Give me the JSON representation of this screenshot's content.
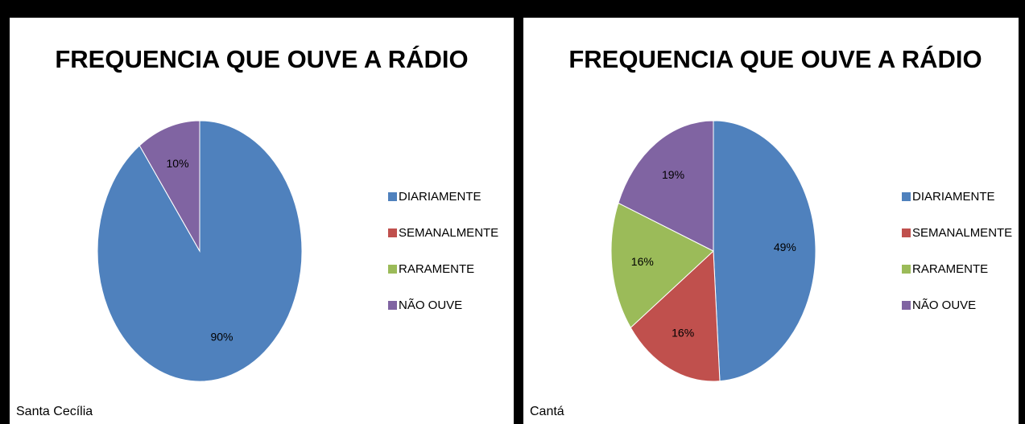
{
  "chart_data": [
    {
      "type": "pie",
      "title": "FREQUENCIA QUE OUVE A RÁDIO",
      "caption": "Santa Cecília",
      "categories": [
        "DIARIAMENTE",
        "SEMANALMENTE",
        "RARAMENTE",
        "NÃO OUVE"
      ],
      "values": [
        90,
        0,
        0,
        10
      ],
      "value_labels": [
        "90%",
        null,
        null,
        "10%"
      ],
      "colors": [
        "#4f81bd",
        "#c0504d",
        "#9bbb59",
        "#8064a2"
      ],
      "legend": "right"
    },
    {
      "type": "pie",
      "title": "FREQUENCIA QUE OUVE A RÁDIO",
      "caption": "Cantá",
      "categories": [
        "DIARIAMENTE",
        "SEMANALMENTE",
        "RARAMENTE",
        "NÃO OUVE"
      ],
      "values": [
        49,
        16,
        16,
        19
      ],
      "value_labels": [
        "49%",
        "16%",
        "16%",
        "19%"
      ],
      "colors": [
        "#4f81bd",
        "#c0504d",
        "#9bbb59",
        "#8064a2"
      ],
      "legend": "right"
    }
  ]
}
